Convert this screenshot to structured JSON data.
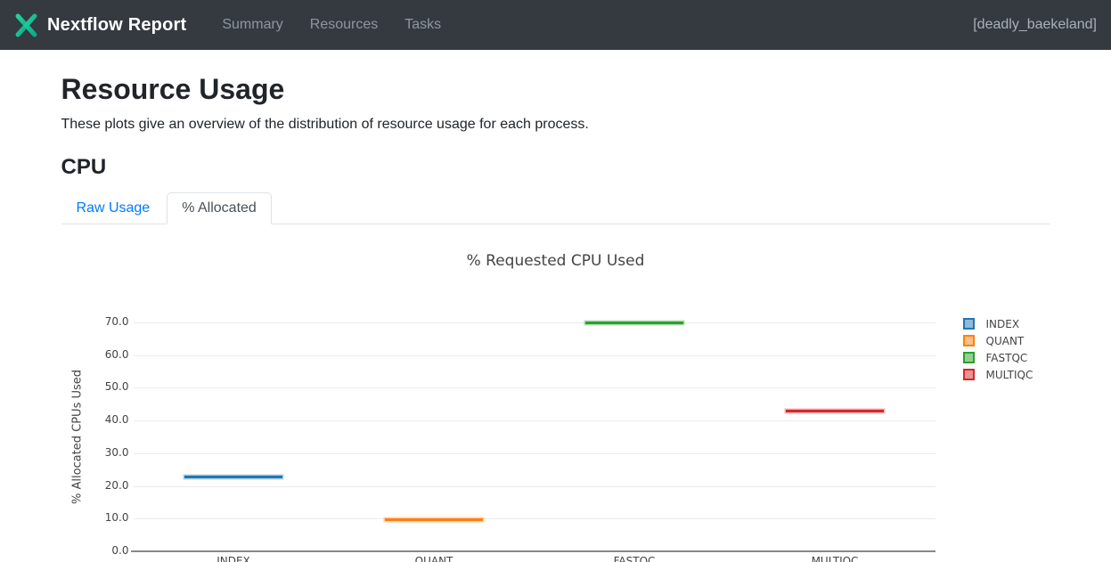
{
  "navbar": {
    "brand": "Nextflow Report",
    "items": [
      {
        "label": "Summary"
      },
      {
        "label": "Resources"
      },
      {
        "label": "Tasks"
      }
    ],
    "session": "[deadly_baekeland]",
    "colors": {
      "background": "#343a40",
      "logo_teal": "#22d39c",
      "logo_green": "#0ca889"
    }
  },
  "page": {
    "title": "Resource Usage",
    "description": "These plots give an overview of the distribution of resource usage for each process.",
    "section_heading": "CPU"
  },
  "tabs": [
    {
      "label": "Raw Usage",
      "active": false
    },
    {
      "label": "% Allocated",
      "active": true
    }
  ],
  "chart_data": {
    "type": "box",
    "title": "% Requested CPU Used",
    "xlabel": "",
    "ylabel": "% Allocated CPUs Used",
    "categories": [
      "INDEX",
      "QUANT",
      "FASTQC",
      "MULTIQC"
    ],
    "series": [
      {
        "name": "INDEX",
        "color": "#1f77b4",
        "value": 22.8
      },
      {
        "name": "QUANT",
        "color": "#ff7f0e",
        "value": 9.6
      },
      {
        "name": "FASTQC",
        "color": "#2ca02c",
        "value": 69.8
      },
      {
        "name": "MULTIQC",
        "color": "#d62728",
        "value": 42.9
      }
    ],
    "yticks": [
      0,
      10,
      20,
      30,
      40,
      50,
      60,
      70
    ],
    "ytick_labels": [
      "0.0",
      "10.0",
      "20.0",
      "30.0",
      "40.0",
      "50.0",
      "60.0",
      "70.0"
    ],
    "ylim": [
      0,
      76
    ],
    "grid": true,
    "legend_position": "right",
    "text_color": "#444444",
    "gridline_color": "#ebebeb",
    "zeroline_color": "#888888"
  }
}
